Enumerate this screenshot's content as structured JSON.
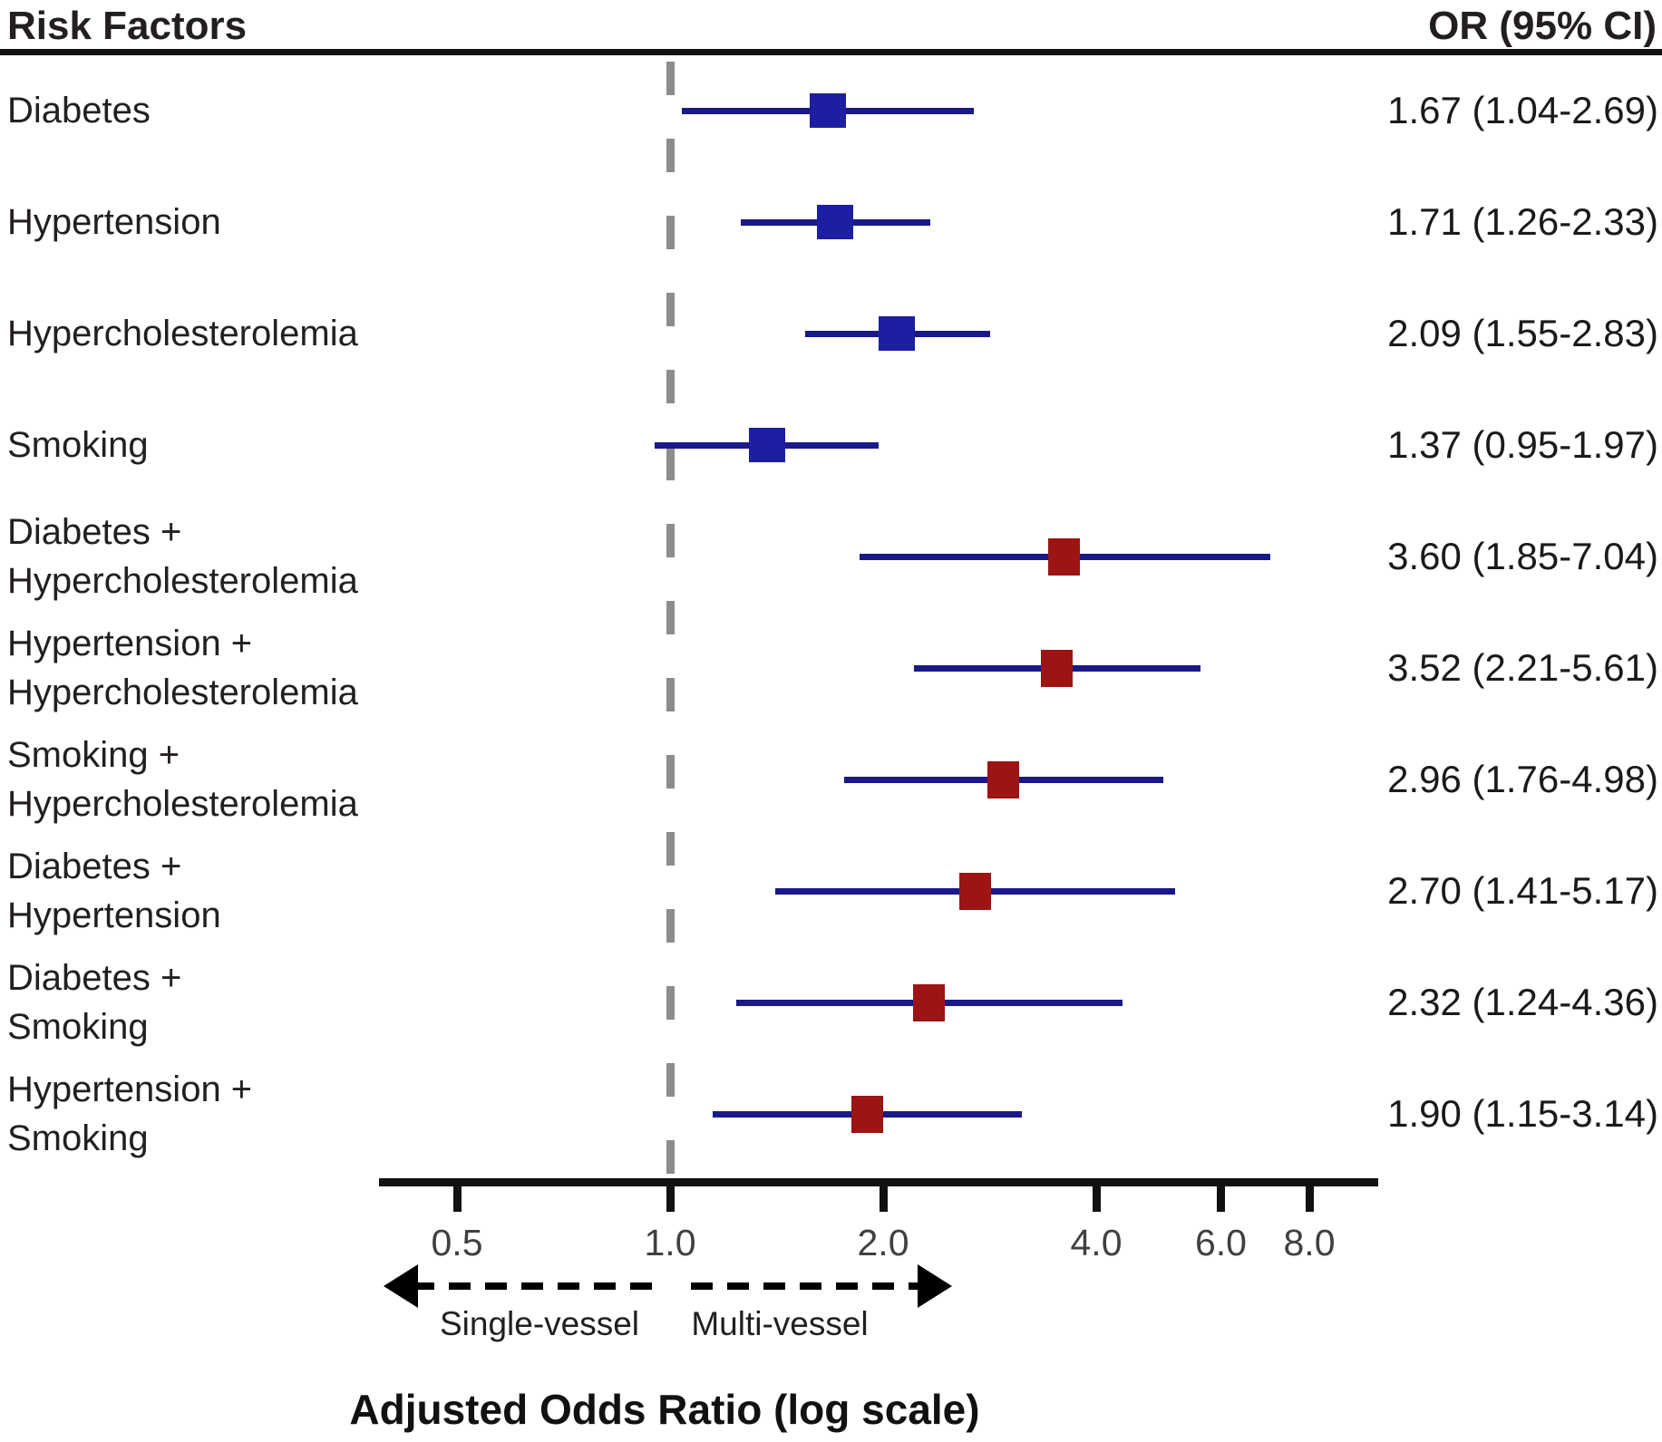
{
  "header": {
    "left": "Risk Factors",
    "right": "OR (95% CI)"
  },
  "colors": {
    "ci_line": "#191987",
    "single_marker": "#1e1ea0",
    "combo_marker": "#9c1414",
    "reference_line": "#8c8c8c",
    "axis": "#111111",
    "tick_label": "#404040"
  },
  "annotations": {
    "left_label": "Single-vessel",
    "right_label": "Multi-vessel",
    "axis_title": "Adjusted Odds Ratio (log scale)"
  },
  "chart_data": {
    "type": "scatter",
    "subtype": "forest-plot",
    "title": "",
    "xlabel": "Adjusted Odds Ratio (log scale)",
    "ylabel": "Risk Factors",
    "x_scale": "log",
    "xlim": [
      0.39,
      9.9
    ],
    "grid": false,
    "reference_value": 1.0,
    "x_ticks": [
      "0.5",
      "1.0",
      "2.0",
      "4.0",
      "6.0",
      "8.0"
    ],
    "x_tick_values": [
      0.5,
      1,
      2,
      4,
      6,
      8
    ],
    "direction_left_label": "Single-vessel",
    "direction_right_label": "Multi-vessel",
    "value_column_header": "OR (95% CI)",
    "rows": [
      {
        "label_lines": [
          "Diabetes"
        ],
        "or": 1.67,
        "ci_low": 1.04,
        "ci_high": 2.69,
        "or_text": "1.67 (1.04-2.69)",
        "group": "single"
      },
      {
        "label_lines": [
          "Hypertension"
        ],
        "or": 1.71,
        "ci_low": 1.26,
        "ci_high": 2.33,
        "or_text": "1.71 (1.26-2.33)",
        "group": "single"
      },
      {
        "label_lines": [
          "Hypercholesterolemia"
        ],
        "or": 2.09,
        "ci_low": 1.55,
        "ci_high": 2.83,
        "or_text": "2.09 (1.55-2.83)",
        "group": "single"
      },
      {
        "label_lines": [
          "Smoking"
        ],
        "or": 1.37,
        "ci_low": 0.95,
        "ci_high": 1.97,
        "or_text": "1.37 (0.95-1.97)",
        "group": "single"
      },
      {
        "label_lines": [
          "Diabetes +",
          "Hypercholesterolemia"
        ],
        "or": 3.6,
        "ci_low": 1.85,
        "ci_high": 7.04,
        "or_text": "3.60 (1.85-7.04)",
        "group": "combo"
      },
      {
        "label_lines": [
          "Hypertension +",
          "Hypercholesterolemia"
        ],
        "or": 3.52,
        "ci_low": 2.21,
        "ci_high": 5.61,
        "or_text": "3.52 (2.21-5.61)",
        "group": "combo"
      },
      {
        "label_lines": [
          "Smoking +",
          "Hypercholesterolemia"
        ],
        "or": 2.96,
        "ci_low": 1.76,
        "ci_high": 4.98,
        "or_text": "2.96 (1.76-4.98)",
        "group": "combo"
      },
      {
        "label_lines": [
          "Diabetes +",
          "Hypertension"
        ],
        "or": 2.7,
        "ci_low": 1.41,
        "ci_high": 5.17,
        "or_text": "2.70 (1.41-5.17)",
        "group": "combo"
      },
      {
        "label_lines": [
          "Diabetes +",
          "Smoking"
        ],
        "or": 2.32,
        "ci_low": 1.24,
        "ci_high": 4.36,
        "or_text": "2.32 (1.24-4.36)",
        "group": "combo"
      },
      {
        "label_lines": [
          "Hypertension +",
          "Smoking"
        ],
        "or": 1.9,
        "ci_low": 1.15,
        "ci_high": 3.14,
        "or_text": "1.90 (1.15-3.14)",
        "group": "combo"
      }
    ]
  }
}
